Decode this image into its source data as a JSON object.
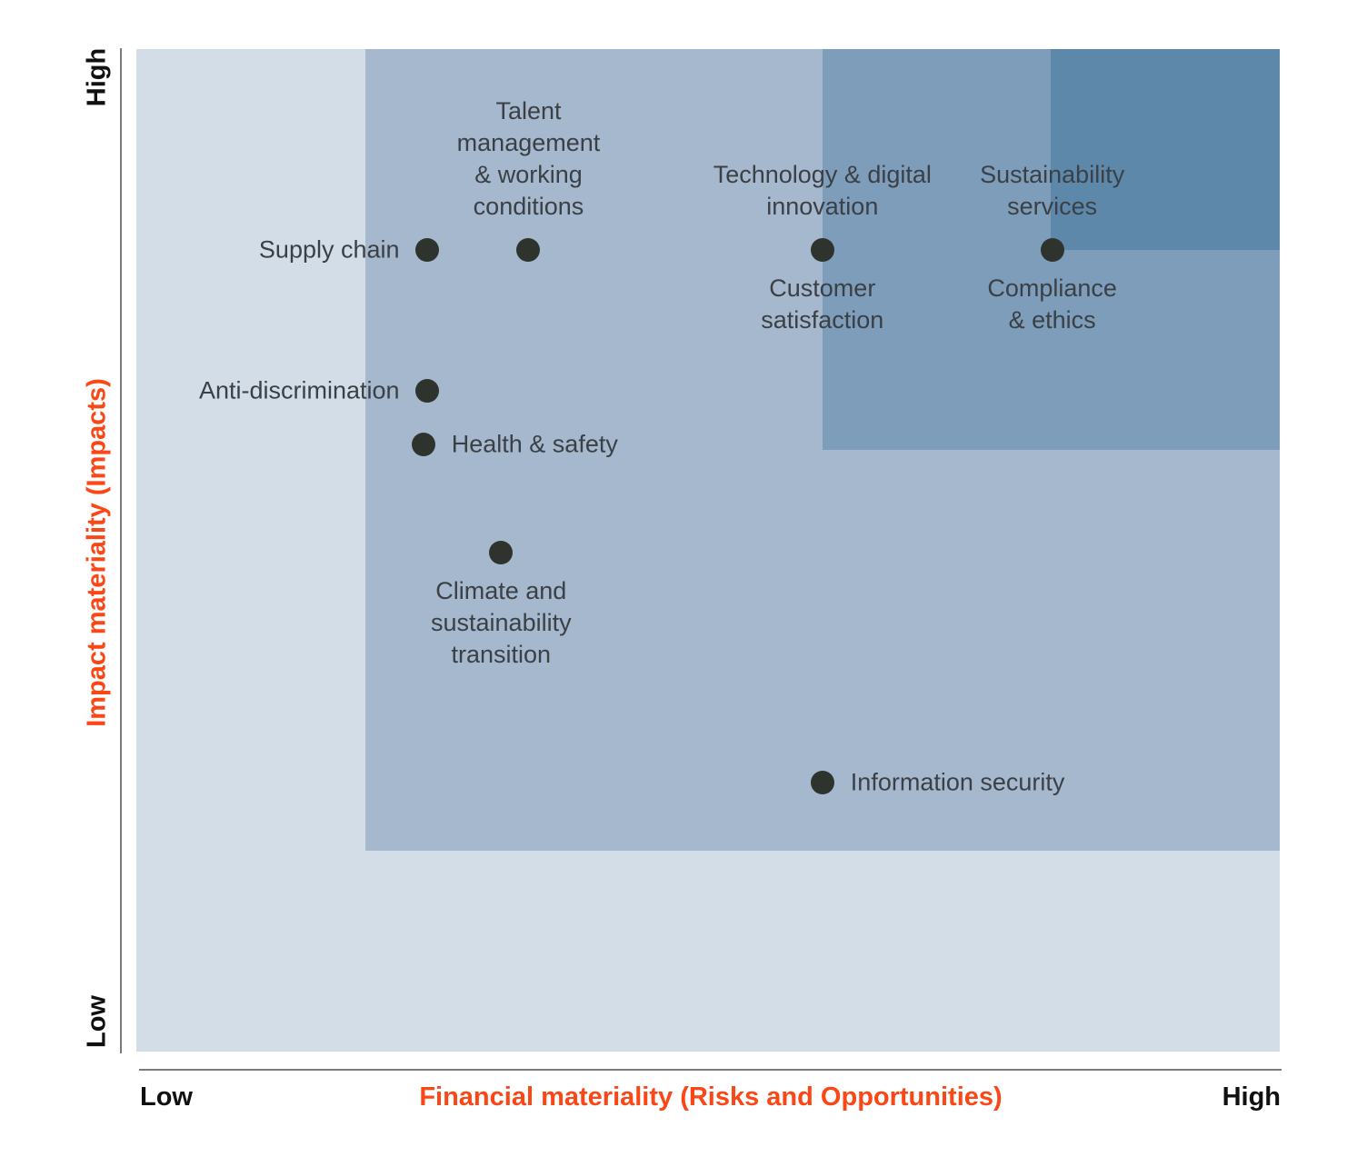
{
  "chart_data": {
    "type": "scatter",
    "title": "",
    "xlabel": "Financial materiality (Risks and Opportunities)",
    "ylabel": "Impact materiality (Impacts)",
    "x_axis": {
      "title": "Financial materiality (Risks and Opportunities)",
      "low": "Low",
      "high": "High"
    },
    "y_axis": {
      "title": "Impact materiality (Impacts)",
      "low": "Low",
      "high": "High"
    },
    "axis_title_color": "#fb4616",
    "tick_label_color": "#111111",
    "axis_line_color": "#7b7b7b",
    "point_color": "#2e332e",
    "point_label_color": "#3a4046",
    "grid": false,
    "legend": false,
    "axis_range_note": "both axes run Low to High with no numeric ticks",
    "regions": [
      {
        "name": "materiality-zone-base",
        "x_start": 0.0,
        "y_depth": 1.0,
        "color": "#d2dde8"
      },
      {
        "name": "materiality-zone-medium",
        "x_start": 0.2,
        "y_depth": 0.8,
        "color": "#a5b8cd"
      },
      {
        "name": "materiality-zone-high",
        "x_start": 0.6,
        "y_depth": 0.4,
        "color": "#7e9dba"
      },
      {
        "name": "materiality-zone-highest",
        "x_start": 0.8,
        "y_depth": 0.2,
        "color": "#5e88aa"
      }
    ],
    "points": [
      {
        "x": 0.254,
        "y": 0.8,
        "labels": [
          {
            "text": "Supply chain",
            "position": "left"
          }
        ]
      },
      {
        "x": 0.343,
        "y": 0.8,
        "labels": [
          {
            "text": "Talent\nmanagement\n& working\nconditions",
            "position": "above"
          }
        ]
      },
      {
        "x": 0.6,
        "y": 0.8,
        "labels": [
          {
            "text": "Technology & digital\ninnovation",
            "position": "above"
          },
          {
            "text": "Customer\nsatisfaction",
            "position": "below"
          }
        ]
      },
      {
        "x": 0.801,
        "y": 0.8,
        "labels": [
          {
            "text": "Sustainability\nservices",
            "position": "above"
          },
          {
            "text": "Compliance\n& ethics",
            "position": "below"
          }
        ]
      },
      {
        "x": 0.254,
        "y": 0.659,
        "labels": [
          {
            "text": "Anti-discrimination",
            "position": "left"
          }
        ]
      },
      {
        "x": 0.251,
        "y": 0.606,
        "labels": [
          {
            "text": "Health & safety",
            "position": "right"
          }
        ]
      },
      {
        "x": 0.319,
        "y": 0.498,
        "labels": [
          {
            "text": "Climate and\nsustainability\ntransition",
            "position": "below"
          }
        ]
      },
      {
        "x": 0.6,
        "y": 0.268,
        "labels": [
          {
            "text": "Information security",
            "position": "right"
          }
        ]
      }
    ]
  }
}
